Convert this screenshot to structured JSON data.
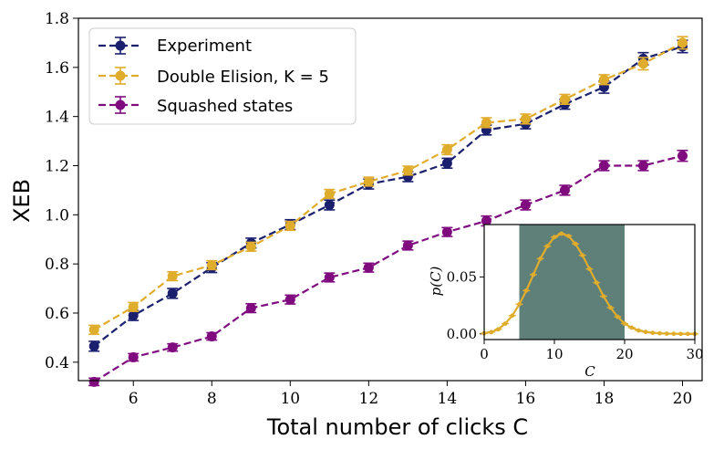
{
  "colors": {
    "experiment": "#1a1f6e",
    "double_elision": "#e0ac2b",
    "squashed": "#7f0b7f",
    "shade": "#5f7f79"
  },
  "chart_data": [
    {
      "type": "line",
      "xlabel": "Total number of clicks C",
      "ylabel": "XEB",
      "xlim": [
        4.6,
        20.5
      ],
      "ylim": [
        0.325,
        1.8
      ],
      "xticks": [
        6,
        8,
        10,
        12,
        14,
        16,
        18,
        20
      ],
      "yticks": [
        0.4,
        0.6,
        0.8,
        1.0,
        1.2,
        1.4,
        1.6,
        1.8
      ],
      "ytick_labels": [
        "0.4",
        "0.6",
        "0.8",
        "1.0",
        "1.2",
        "1.4",
        "1.6",
        "1.8"
      ],
      "legend_position": "upper-left",
      "x": [
        5,
        6,
        7,
        8,
        9,
        10,
        11,
        12,
        13,
        14,
        15,
        16,
        17,
        18,
        19,
        20
      ],
      "series": [
        {
          "name": "Experiment",
          "color_key": "experiment",
          "values": [
            0.465,
            0.59,
            0.68,
            0.785,
            0.885,
            0.96,
            1.04,
            1.125,
            1.155,
            1.21,
            1.345,
            1.37,
            1.45,
            1.52,
            1.635,
            1.685
          ],
          "errors": [
            0.02,
            0.02,
            0.02,
            0.02,
            0.02,
            0.02,
            0.02,
            0.02,
            0.02,
            0.02,
            0.02,
            0.02,
            0.02,
            0.025,
            0.025,
            0.025
          ]
        },
        {
          "name": "Double Elision, K = 5",
          "color_key": "double_elision",
          "values": [
            0.532,
            0.625,
            0.75,
            0.795,
            0.87,
            0.955,
            1.085,
            1.135,
            1.18,
            1.265,
            1.375,
            1.39,
            1.47,
            1.55,
            1.615,
            1.7
          ],
          "errors": [
            0.018,
            0.018,
            0.018,
            0.018,
            0.018,
            0.018,
            0.018,
            0.018,
            0.018,
            0.02,
            0.02,
            0.02,
            0.02,
            0.02,
            0.025,
            0.025
          ]
        },
        {
          "name": "Squashed states",
          "color_key": "squashed",
          "values": [
            0.32,
            0.42,
            0.46,
            0.505,
            0.62,
            0.655,
            0.745,
            0.785,
            0.875,
            0.93,
            0.975,
            1.04,
            1.1,
            1.2,
            1.2,
            1.24
          ],
          "errors": [
            0.015,
            0.015,
            0.015,
            0.015,
            0.018,
            0.018,
            0.018,
            0.018,
            0.018,
            0.018,
            0.02,
            0.02,
            0.02,
            0.02,
            0.02,
            0.022
          ]
        }
      ]
    },
    {
      "type": "line",
      "role": "inset",
      "xlabel": "C",
      "ylabel": "p(C)",
      "xlim": [
        0,
        30
      ],
      "ylim": [
        -0.005,
        0.096
      ],
      "xticks": [
        0,
        10,
        20,
        30
      ],
      "yticks": [
        0.0,
        0.05
      ],
      "ytick_labels": [
        "0.00",
        "0.05"
      ],
      "shaded_x_range": [
        5,
        20
      ],
      "series": [
        {
          "name": "p(C)",
          "color_key": "double_elision",
          "x": [
            0,
            1,
            2,
            3,
            4,
            5,
            6,
            7,
            8,
            9,
            10,
            11,
            12,
            13,
            14,
            15,
            16,
            17,
            18,
            19,
            20,
            21,
            22,
            23,
            24,
            25,
            26,
            27,
            28,
            29,
            30
          ],
          "values": [
            0.0005,
            0.0015,
            0.004,
            0.009,
            0.016,
            0.026,
            0.038,
            0.052,
            0.066,
            0.077,
            0.085,
            0.088,
            0.086,
            0.079,
            0.069,
            0.057,
            0.045,
            0.033,
            0.023,
            0.015,
            0.009,
            0.0055,
            0.003,
            0.0017,
            0.0009,
            0.0005,
            0.0002,
            0.0001,
            0.0,
            0.0,
            0.0
          ]
        }
      ]
    }
  ]
}
